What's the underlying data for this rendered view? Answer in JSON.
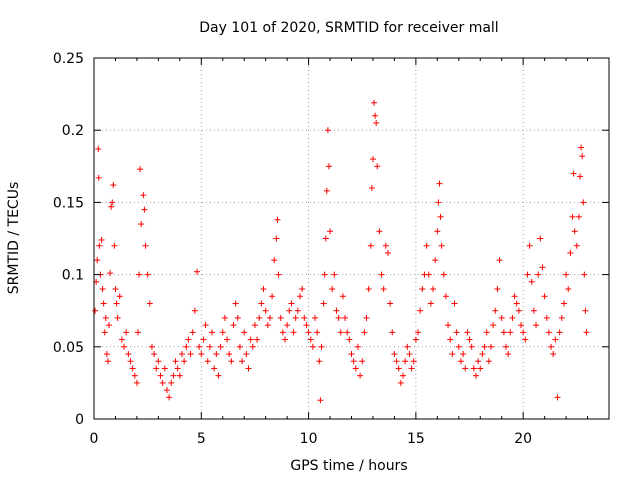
{
  "chart_data": {
    "type": "scatter",
    "title": "Day 101 of 2020, SRMTID for receiver mall",
    "xlabel": "GPS time / hours",
    "ylabel": "SRMTID / TECUs",
    "xlim": [
      0,
      24
    ],
    "ylim": [
      0,
      0.25
    ],
    "x_ticks": [
      0,
      5,
      10,
      15,
      20
    ],
    "x_tick_labels": [
      "0",
      "5",
      "10",
      "15",
      "20"
    ],
    "y_ticks": [
      0,
      0.05,
      0.1,
      0.15,
      0.2,
      0.25
    ],
    "y_tick_labels": [
      "0",
      "0.05",
      "0.1",
      "0.15",
      "0.2",
      "0.25"
    ],
    "grid": true,
    "marker": "+",
    "series": [
      {
        "name": "SRMTID",
        "color": "#ff0000",
        "points": [
          [
            0.05,
            0.075
          ],
          [
            0.1,
            0.095
          ],
          [
            0.15,
            0.11
          ],
          [
            0.2,
            0.187
          ],
          [
            0.22,
            0.167
          ],
          [
            0.25,
            0.12
          ],
          [
            0.3,
            0.1
          ],
          [
            0.35,
            0.124
          ],
          [
            0.4,
            0.09
          ],
          [
            0.45,
            0.08
          ],
          [
            0.5,
            0.06
          ],
          [
            0.55,
            0.07
          ],
          [
            0.6,
            0.045
          ],
          [
            0.65,
            0.04
          ],
          [
            0.7,
            0.065
          ],
          [
            0.75,
            0.101
          ],
          [
            0.8,
            0.147
          ],
          [
            0.85,
            0.15
          ],
          [
            0.9,
            0.162
          ],
          [
            0.95,
            0.12
          ],
          [
            1.0,
            0.09
          ],
          [
            1.05,
            0.08
          ],
          [
            1.1,
            0.07
          ],
          [
            1.2,
            0.085
          ],
          [
            1.3,
            0.055
          ],
          [
            1.4,
            0.05
          ],
          [
            1.5,
            0.06
          ],
          [
            1.6,
            0.045
          ],
          [
            1.7,
            0.04
          ],
          [
            1.8,
            0.035
          ],
          [
            1.9,
            0.03
          ],
          [
            2.0,
            0.025
          ],
          [
            2.05,
            0.06
          ],
          [
            2.1,
            0.1
          ],
          [
            2.15,
            0.173
          ],
          [
            2.2,
            0.135
          ],
          [
            2.3,
            0.155
          ],
          [
            2.35,
            0.145
          ],
          [
            2.4,
            0.12
          ],
          [
            2.5,
            0.1
          ],
          [
            2.6,
            0.08
          ],
          [
            2.7,
            0.05
          ],
          [
            2.8,
            0.045
          ],
          [
            2.9,
            0.035
          ],
          [
            3.0,
            0.04
          ],
          [
            3.1,
            0.03
          ],
          [
            3.2,
            0.025
          ],
          [
            3.3,
            0.035
          ],
          [
            3.4,
            0.02
          ],
          [
            3.5,
            0.015
          ],
          [
            3.6,
            0.025
          ],
          [
            3.7,
            0.03
          ],
          [
            3.8,
            0.04
          ],
          [
            3.9,
            0.035
          ],
          [
            4.0,
            0.03
          ],
          [
            4.1,
            0.045
          ],
          [
            4.2,
            0.04
          ],
          [
            4.3,
            0.05
          ],
          [
            4.4,
            0.055
          ],
          [
            4.5,
            0.045
          ],
          [
            4.6,
            0.06
          ],
          [
            4.7,
            0.075
          ],
          [
            4.8,
            0.102
          ],
          [
            4.9,
            0.05
          ],
          [
            5.0,
            0.045
          ],
          [
            5.1,
            0.055
          ],
          [
            5.2,
            0.065
          ],
          [
            5.3,
            0.04
          ],
          [
            5.4,
            0.05
          ],
          [
            5.5,
            0.06
          ],
          [
            5.6,
            0.035
          ],
          [
            5.7,
            0.045
          ],
          [
            5.8,
            0.03
          ],
          [
            5.9,
            0.05
          ],
          [
            6.0,
            0.06
          ],
          [
            6.1,
            0.07
          ],
          [
            6.2,
            0.055
          ],
          [
            6.3,
            0.045
          ],
          [
            6.4,
            0.04
          ],
          [
            6.5,
            0.065
          ],
          [
            6.6,
            0.08
          ],
          [
            6.7,
            0.07
          ],
          [
            6.8,
            0.05
          ],
          [
            6.9,
            0.04
          ],
          [
            7.0,
            0.06
          ],
          [
            7.1,
            0.045
          ],
          [
            7.2,
            0.035
          ],
          [
            7.3,
            0.055
          ],
          [
            7.4,
            0.05
          ],
          [
            7.5,
            0.065
          ],
          [
            7.6,
            0.055
          ],
          [
            7.7,
            0.07
          ],
          [
            7.8,
            0.08
          ],
          [
            7.9,
            0.09
          ],
          [
            8.0,
            0.075
          ],
          [
            8.1,
            0.065
          ],
          [
            8.2,
            0.07
          ],
          [
            8.3,
            0.085
          ],
          [
            8.4,
            0.11
          ],
          [
            8.5,
            0.125
          ],
          [
            8.55,
            0.138
          ],
          [
            8.6,
            0.1
          ],
          [
            8.7,
            0.07
          ],
          [
            8.8,
            0.06
          ],
          [
            8.9,
            0.055
          ],
          [
            9.0,
            0.065
          ],
          [
            9.1,
            0.075
          ],
          [
            9.2,
            0.08
          ],
          [
            9.3,
            0.06
          ],
          [
            9.4,
            0.07
          ],
          [
            9.5,
            0.075
          ],
          [
            9.6,
            0.085
          ],
          [
            9.7,
            0.09
          ],
          [
            9.8,
            0.07
          ],
          [
            9.9,
            0.065
          ],
          [
            10.0,
            0.06
          ],
          [
            10.1,
            0.055
          ],
          [
            10.2,
            0.05
          ],
          [
            10.3,
            0.07
          ],
          [
            10.4,
            0.06
          ],
          [
            10.5,
            0.04
          ],
          [
            10.55,
            0.013
          ],
          [
            10.6,
            0.05
          ],
          [
            10.7,
            0.08
          ],
          [
            10.75,
            0.1
          ],
          [
            10.8,
            0.125
          ],
          [
            10.85,
            0.158
          ],
          [
            10.9,
            0.2
          ],
          [
            10.95,
            0.175
          ],
          [
            11.0,
            0.13
          ],
          [
            11.1,
            0.09
          ],
          [
            11.2,
            0.1
          ],
          [
            11.3,
            0.075
          ],
          [
            11.4,
            0.07
          ],
          [
            11.5,
            0.06
          ],
          [
            11.6,
            0.085
          ],
          [
            11.7,
            0.07
          ],
          [
            11.8,
            0.06
          ],
          [
            11.9,
            0.055
          ],
          [
            12.0,
            0.045
          ],
          [
            12.1,
            0.04
          ],
          [
            12.2,
            0.035
          ],
          [
            12.3,
            0.05
          ],
          [
            12.4,
            0.03
          ],
          [
            12.5,
            0.04
          ],
          [
            12.6,
            0.06
          ],
          [
            12.7,
            0.07
          ],
          [
            12.8,
            0.09
          ],
          [
            12.9,
            0.12
          ],
          [
            12.95,
            0.16
          ],
          [
            13.0,
            0.18
          ],
          [
            13.05,
            0.219
          ],
          [
            13.1,
            0.21
          ],
          [
            13.15,
            0.205
          ],
          [
            13.2,
            0.175
          ],
          [
            13.3,
            0.13
          ],
          [
            13.4,
            0.1
          ],
          [
            13.5,
            0.09
          ],
          [
            13.6,
            0.12
          ],
          [
            13.7,
            0.115
          ],
          [
            13.8,
            0.08
          ],
          [
            13.9,
            0.06
          ],
          [
            14.0,
            0.045
          ],
          [
            14.1,
            0.04
          ],
          [
            14.2,
            0.035
          ],
          [
            14.3,
            0.025
          ],
          [
            14.4,
            0.03
          ],
          [
            14.5,
            0.04
          ],
          [
            14.6,
            0.05
          ],
          [
            14.7,
            0.045
          ],
          [
            14.8,
            0.035
          ],
          [
            14.9,
            0.04
          ],
          [
            15.0,
            0.055
          ],
          [
            15.1,
            0.06
          ],
          [
            15.2,
            0.075
          ],
          [
            15.3,
            0.09
          ],
          [
            15.4,
            0.1
          ],
          [
            15.5,
            0.12
          ],
          [
            15.6,
            0.1
          ],
          [
            15.7,
            0.08
          ],
          [
            15.8,
            0.09
          ],
          [
            15.9,
            0.11
          ],
          [
            16.0,
            0.13
          ],
          [
            16.05,
            0.15
          ],
          [
            16.1,
            0.163
          ],
          [
            16.15,
            0.14
          ],
          [
            16.2,
            0.12
          ],
          [
            16.3,
            0.1
          ],
          [
            16.4,
            0.085
          ],
          [
            16.5,
            0.065
          ],
          [
            16.6,
            0.055
          ],
          [
            16.7,
            0.045
          ],
          [
            16.8,
            0.08
          ],
          [
            16.9,
            0.06
          ],
          [
            17.0,
            0.05
          ],
          [
            17.1,
            0.04
          ],
          [
            17.2,
            0.045
          ],
          [
            17.3,
            0.035
          ],
          [
            17.4,
            0.06
          ],
          [
            17.5,
            0.055
          ],
          [
            17.6,
            0.05
          ],
          [
            17.7,
            0.035
          ],
          [
            17.8,
            0.03
          ],
          [
            17.9,
            0.04
          ],
          [
            18.0,
            0.035
          ],
          [
            18.1,
            0.045
          ],
          [
            18.2,
            0.05
          ],
          [
            18.3,
            0.06
          ],
          [
            18.4,
            0.04
          ],
          [
            18.5,
            0.05
          ],
          [
            18.6,
            0.065
          ],
          [
            18.7,
            0.075
          ],
          [
            18.8,
            0.09
          ],
          [
            18.9,
            0.11
          ],
          [
            19.0,
            0.07
          ],
          [
            19.1,
            0.06
          ],
          [
            19.2,
            0.05
          ],
          [
            19.3,
            0.045
          ],
          [
            19.4,
            0.06
          ],
          [
            19.5,
            0.07
          ],
          [
            19.6,
            0.085
          ],
          [
            19.7,
            0.08
          ],
          [
            19.8,
            0.075
          ],
          [
            19.9,
            0.065
          ],
          [
            20.0,
            0.06
          ],
          [
            20.1,
            0.055
          ],
          [
            20.2,
            0.1
          ],
          [
            20.3,
            0.12
          ],
          [
            20.4,
            0.095
          ],
          [
            20.5,
            0.075
          ],
          [
            20.6,
            0.065
          ],
          [
            20.7,
            0.1
          ],
          [
            20.8,
            0.125
          ],
          [
            20.9,
            0.105
          ],
          [
            21.0,
            0.085
          ],
          [
            21.1,
            0.07
          ],
          [
            21.2,
            0.06
          ],
          [
            21.3,
            0.05
          ],
          [
            21.4,
            0.045
          ],
          [
            21.5,
            0.055
          ],
          [
            21.6,
            0.015
          ],
          [
            21.7,
            0.06
          ],
          [
            21.8,
            0.07
          ],
          [
            21.9,
            0.08
          ],
          [
            22.0,
            0.1
          ],
          [
            22.1,
            0.09
          ],
          [
            22.2,
            0.115
          ],
          [
            22.3,
            0.14
          ],
          [
            22.35,
            0.17
          ],
          [
            22.4,
            0.13
          ],
          [
            22.5,
            0.12
          ],
          [
            22.6,
            0.14
          ],
          [
            22.65,
            0.168
          ],
          [
            22.7,
            0.188
          ],
          [
            22.75,
            0.182
          ],
          [
            22.8,
            0.15
          ],
          [
            22.85,
            0.1
          ],
          [
            22.9,
            0.075
          ],
          [
            22.95,
            0.06
          ]
        ]
      }
    ]
  }
}
